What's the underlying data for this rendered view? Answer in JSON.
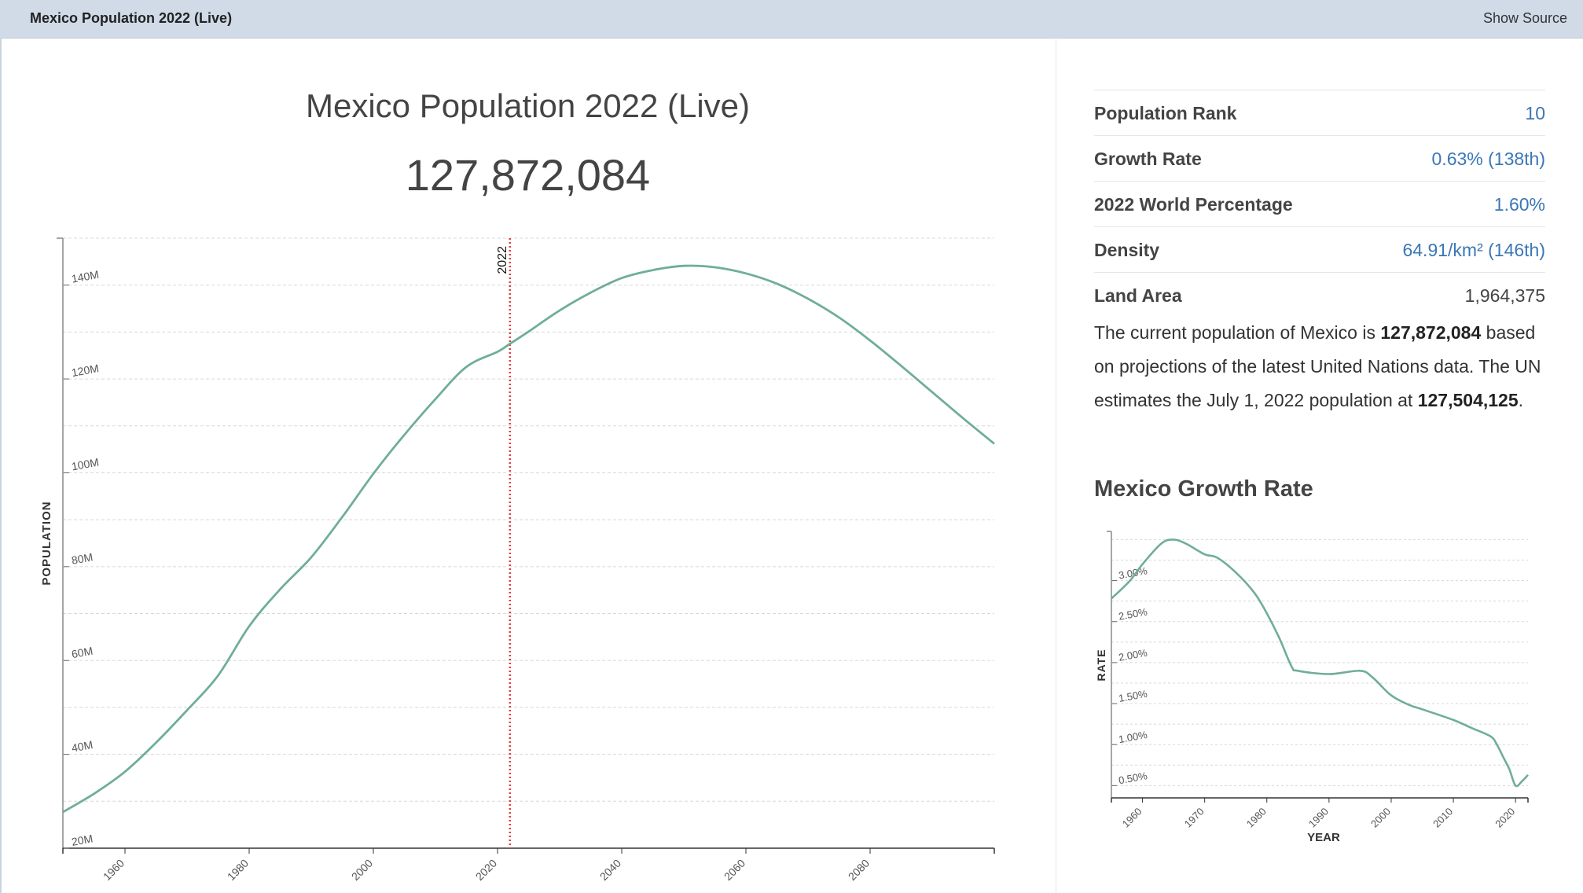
{
  "header": {
    "title": "Mexico Population 2022 (Live)",
    "show_source": "Show Source"
  },
  "main": {
    "title": "Mexico Population 2022 (Live)",
    "count": "127,872,084"
  },
  "stats": [
    {
      "label": "Population Rank",
      "value": "10",
      "link": true
    },
    {
      "label": "Growth Rate",
      "value": "0.63% (138th)",
      "link": true
    },
    {
      "label": "2022 World Percentage",
      "value": "1.60%",
      "link": true
    },
    {
      "label": "Density",
      "value": "64.91/km² (146th)",
      "link": true
    },
    {
      "label": "Land Area",
      "value": "1,964,375",
      "link": false
    }
  ],
  "description": {
    "part1": "The current population of Mexico is ",
    "bold1": "127,872,084",
    "part2": " based on projections of the latest United Nations data. The UN estimates the July 1, 2022 population at ",
    "bold2": "127,504,125",
    "part3": "."
  },
  "growth_title": "Mexico Growth Rate",
  "colors": {
    "line": "#6fae98",
    "marker": "#e0403a",
    "link": "#3a77b7",
    "header_bg": "#d0dbe7"
  },
  "chart_data": [
    {
      "type": "line",
      "title": "",
      "ylabel": "POPULATION",
      "xlabel": "",
      "xlim": [
        1950,
        2100
      ],
      "ylim": [
        20,
        150
      ],
      "x_ticks": [
        1960,
        1980,
        2000,
        2020,
        2040,
        2060,
        2080
      ],
      "y_ticks": [
        20,
        40,
        60,
        80,
        100,
        120,
        140
      ],
      "y_tick_labels": [
        "20M",
        "40M",
        "60M",
        "80M",
        "100M",
        "120M",
        "140M"
      ],
      "marker": {
        "x": 2022,
        "label": "2022"
      },
      "grid": true,
      "series": [
        {
          "x": [
            1950,
            1955,
            1960,
            1965,
            1970,
            1975,
            1980,
            1985,
            1990,
            1995,
            2000,
            2005,
            2010,
            2015,
            2020,
            2022,
            2025,
            2030,
            2035,
            2040,
            2045,
            2050,
            2055,
            2060,
            2065,
            2070,
            2075,
            2080,
            2085,
            2090,
            2095,
            2100
          ],
          "values": [
            27.7,
            31.6,
            36.3,
            42.5,
            49.4,
            56.8,
            67.3,
            75.2,
            82.0,
            90.6,
            99.8,
            108.1,
            115.7,
            122.6,
            125.8,
            127.5,
            130.1,
            134.6,
            138.4,
            141.5,
            143.2,
            144.1,
            143.8,
            142.5,
            140.3,
            137.1,
            133.1,
            128.2,
            122.8,
            117.2,
            111.6,
            106.2
          ]
        }
      ]
    },
    {
      "type": "line",
      "title": "Mexico Growth Rate",
      "ylabel": "RATE",
      "xlabel": "YEAR",
      "xlim": [
        1955,
        2022
      ],
      "ylim": [
        0.35,
        3.6
      ],
      "x_ticks": [
        1960,
        1970,
        1980,
        1990,
        2000,
        2010,
        2020
      ],
      "y_ticks": [
        0.5,
        1.0,
        1.5,
        2.0,
        2.5,
        3.0
      ],
      "y_tick_labels": [
        "0.50%",
        "1.00%",
        "1.50%",
        "2.00%",
        "2.50%",
        "3.00%"
      ],
      "grid": true,
      "series": [
        {
          "x": [
            1955,
            1958,
            1960,
            1963,
            1965,
            1967,
            1970,
            1972,
            1975,
            1978,
            1980,
            1982,
            1984,
            1985,
            1990,
            1995,
            1997,
            2000,
            2003,
            2005,
            2010,
            2013,
            2016,
            2017,
            2018,
            2019,
            2020,
            2021,
            2022
          ],
          "values": [
            2.78,
            3.0,
            3.2,
            3.45,
            3.5,
            3.45,
            3.32,
            3.28,
            3.1,
            2.85,
            2.6,
            2.3,
            1.95,
            1.9,
            1.86,
            1.9,
            1.82,
            1.6,
            1.48,
            1.43,
            1.3,
            1.2,
            1.1,
            1.0,
            0.85,
            0.7,
            0.5,
            0.55,
            0.63
          ]
        }
      ]
    }
  ]
}
